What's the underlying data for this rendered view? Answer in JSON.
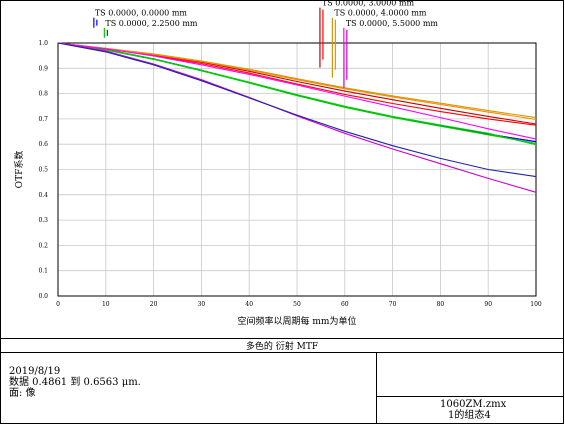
{
  "chart_data": {
    "type": "line",
    "title": "多色的 衍射 MTF",
    "xlabel": "空间频率以周期每 mm为单位",
    "ylabel": "OTF系数",
    "xlim": [
      0,
      100
    ],
    "ylim": [
      0,
      1
    ],
    "x_ticks": [
      "0",
      "10",
      "20",
      "30",
      "40",
      "50",
      "60",
      "70",
      "80",
      "90",
      "100"
    ],
    "y_ticks": [
      "0.0",
      "0.1",
      "0.2",
      "0.3",
      "0.4",
      "0.5",
      "0.6",
      "0.7",
      "0.8",
      "0.9",
      "1.0"
    ],
    "grid": true,
    "x": [
      0,
      10,
      20,
      30,
      40,
      50,
      60,
      70,
      80,
      90,
      100
    ],
    "series": [
      {
        "name": "TS 0.0000, 0.0000 mm",
        "color": "#0000ff",
        "style": "T",
        "values": [
          1.0,
          0.974,
          0.937,
          0.892,
          0.843,
          0.793,
          0.747,
          0.707,
          0.672,
          0.64,
          0.61
        ]
      },
      {
        "name": "TS 0.0000, 0.0000 mm",
        "color": "#0000ff",
        "style": "S",
        "values": [
          1.0,
          0.974,
          0.937,
          0.892,
          0.843,
          0.793,
          0.747,
          0.707,
          0.672,
          0.64,
          0.61
        ]
      },
      {
        "name": "TS 0.0000, 2.2500 mm",
        "color": "#00cc00",
        "style": "T",
        "values": [
          1.0,
          0.972,
          0.935,
          0.89,
          0.842,
          0.792,
          0.746,
          0.706,
          0.671,
          0.637,
          0.603
        ]
      },
      {
        "name": "TS 0.0000, 2.2500 mm",
        "color": "#00cc00",
        "style": "S",
        "values": [
          1.0,
          0.974,
          0.937,
          0.892,
          0.845,
          0.796,
          0.75,
          0.71,
          0.676,
          0.643,
          0.598
        ]
      },
      {
        "name": "TS 0.0000, 3.0000 mm",
        "color": "#cc0000",
        "style": "T",
        "values": [
          1.0,
          0.978,
          0.954,
          0.924,
          0.888,
          0.848,
          0.81,
          0.776,
          0.742,
          0.71,
          0.68
        ]
      },
      {
        "name": "TS 0.0000, 3.0000 mm",
        "color": "#ff0000",
        "style": "S",
        "values": [
          1.0,
          0.977,
          0.951,
          0.919,
          0.881,
          0.838,
          0.797,
          0.761,
          0.729,
          0.7,
          0.675
        ]
      },
      {
        "name": "TS 0.0000, 4.0000 mm",
        "color": "#cc9900",
        "style": "T",
        "values": [
          1.0,
          0.979,
          0.957,
          0.929,
          0.896,
          0.859,
          0.823,
          0.791,
          0.762,
          0.733,
          0.705
        ]
      },
      {
        "name": "TS 0.0000, 4.0000 mm",
        "color": "#ff8800",
        "style": "S",
        "values": [
          1.0,
          0.978,
          0.955,
          0.927,
          0.893,
          0.855,
          0.819,
          0.787,
          0.757,
          0.727,
          0.698
        ]
      },
      {
        "name": "TS 0.0000, 5.5000 mm",
        "color": "#ff00ff",
        "style": "T",
        "values": [
          1.0,
          0.977,
          0.949,
          0.914,
          0.876,
          0.834,
          0.79,
          0.748,
          0.705,
          0.661,
          0.62
        ]
      },
      {
        "name": "TS 0.0000, 5.5000 mm",
        "color": "#cc00cc",
        "style": "S",
        "values": [
          1.0,
          0.968,
          0.917,
          0.855,
          0.785,
          0.712,
          0.643,
          0.581,
          0.523,
          0.465,
          0.41
        ]
      },
      {
        "name": "TS 0.0000, 2.2500 mm",
        "color": "#2222aa",
        "style": "S",
        "values": [
          1.0,
          0.965,
          0.914,
          0.851,
          0.783,
          0.715,
          0.651,
          0.594,
          0.544,
          0.5,
          0.472
        ]
      }
    ],
    "legend": [
      {
        "label": "TS 0.0000, 0.0000 mm",
        "colors": [
          "#0000ff",
          "#0000ff"
        ],
        "x": 7.5,
        "y_top": 1.1
      },
      {
        "label": "TS 0.0000, 2.2500 mm",
        "colors": [
          "#00cc00",
          "#2222aa"
        ],
        "x": 9.7,
        "y_top": 1.06
      },
      {
        "label": "TS 0.0000, 3.0000 mm",
        "colors": [
          "#cc0000",
          "#ff0000"
        ],
        "x": 54.8,
        "y_top": 1.14
      },
      {
        "label": "TS 0.0000, 4.0000 mm",
        "colors": [
          "#cc9900",
          "#ff8800"
        ],
        "x": 57.4,
        "y_top": 1.1
      },
      {
        "label": "TS 0.0000, 5.5000 mm",
        "colors": [
          "#ff00ff",
          "#cc00cc"
        ],
        "x": 59.8,
        "y_top": 1.06
      }
    ]
  },
  "info": {
    "date": "2019/8/19",
    "data_line": "数据 0.4861 到 0.6563 μm.",
    "surface_line": "面: 像",
    "file": "1060ZM.zmx",
    "config": "1的组态4"
  }
}
